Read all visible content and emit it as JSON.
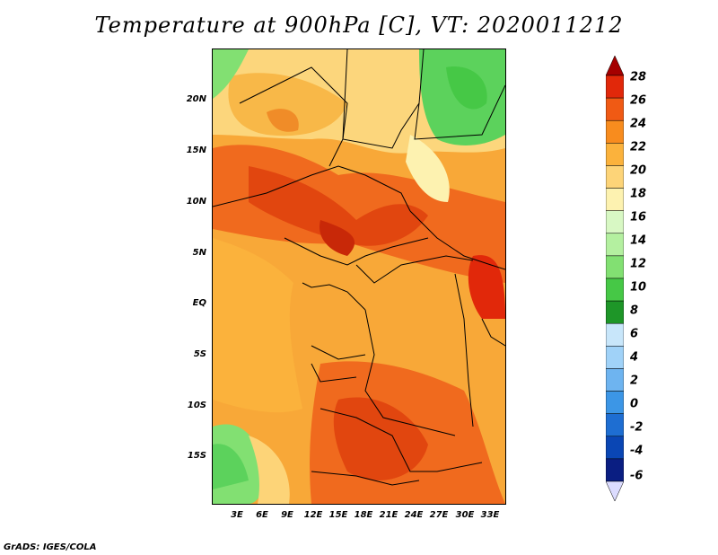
{
  "title": "Temperature at 900hPa [C], VT: 2020011212",
  "footer": "GrADS: IGES/COLA",
  "axes": {
    "y_ticks": [
      "20N",
      "15N",
      "10N",
      "5N",
      "EQ",
      "5S",
      "10S",
      "15S"
    ],
    "x_ticks": [
      "3E",
      "6E",
      "9E",
      "12E",
      "15E",
      "18E",
      "21E",
      "24E",
      "27E",
      "30E",
      "33E"
    ]
  },
  "colorbar": {
    "labels": [
      "28",
      "26",
      "24",
      "22",
      "20",
      "18",
      "16",
      "14",
      "12",
      "10",
      "8",
      "6",
      "4",
      "2",
      "0",
      "-2",
      "-4",
      "-6"
    ],
    "colors": [
      "#a50000",
      "#e1280a",
      "#f05a14",
      "#f88c1e",
      "#fbb23c",
      "#fdd478",
      "#fdf2b0",
      "#d8f8c4",
      "#b4f0a0",
      "#82e072",
      "#46c846",
      "#1e9628",
      "#c8e6fa",
      "#a0d2f8",
      "#6eb4f0",
      "#3c96e6",
      "#1e6ed2",
      "#0a46b4",
      "#0a1e82",
      "#dcdcff"
    ]
  },
  "chart_data": {
    "type": "heatmap",
    "title": "Temperature at 900hPa [C], VT: 2020011212",
    "variable": "Temperature at 900hPa",
    "unit": "C",
    "valid_time": "2020011212",
    "x_tick_labels": [
      "3E",
      "6E",
      "9E",
      "12E",
      "15E",
      "18E",
      "21E",
      "24E",
      "27E",
      "30E",
      "33E"
    ],
    "y_tick_labels": [
      "20N",
      "15N",
      "10N",
      "5N",
      "EQ",
      "5S",
      "10S",
      "15S"
    ],
    "colorbar_levels": [
      -6,
      -4,
      -2,
      0,
      2,
      4,
      6,
      8,
      10,
      12,
      14,
      16,
      18,
      20,
      22,
      24,
      26,
      28
    ]
  }
}
